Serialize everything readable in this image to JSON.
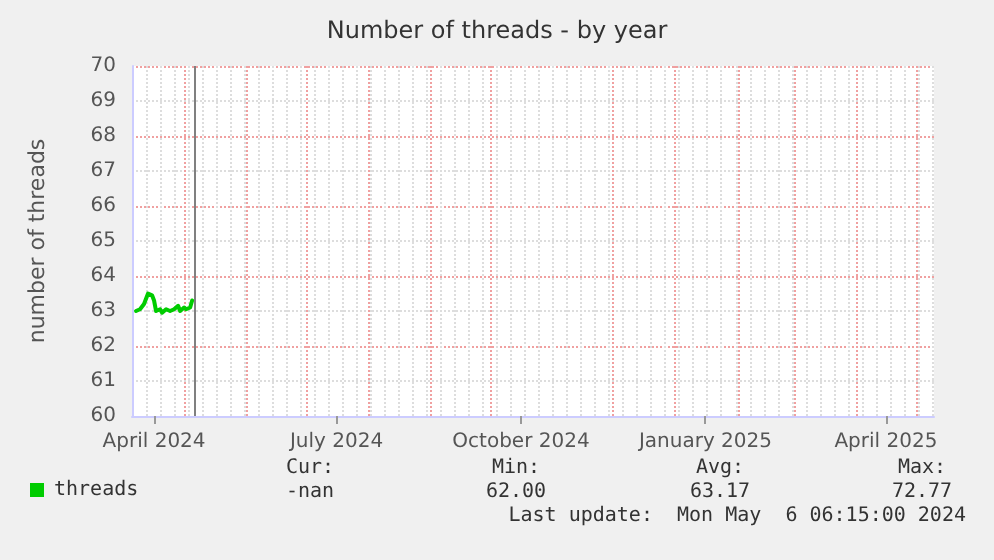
{
  "chart_data": {
    "type": "line",
    "title": "Number of threads - by year",
    "ylabel": "number of threads",
    "x": [
      "2024-04-07",
      "2024-04-09",
      "2024-04-11",
      "2024-04-13",
      "2024-04-15",
      "2024-04-16",
      "2024-04-17",
      "2024-04-19",
      "2024-04-20",
      "2024-04-22",
      "2024-04-24",
      "2024-04-26",
      "2024-04-28",
      "2024-04-29",
      "2024-04-30",
      "2024-05-01",
      "2024-05-02",
      "2024-05-04",
      "2024-05-05"
    ],
    "series": [
      {
        "name": "threads",
        "color": "#00cc00",
        "values": [
          63.0,
          63.05,
          63.2,
          63.5,
          63.45,
          63.3,
          63.0,
          63.05,
          62.95,
          63.05,
          63.0,
          63.05,
          63.15,
          63.0,
          63.05,
          63.1,
          63.05,
          63.1,
          63.3
        ]
      }
    ],
    "xlim": [
      "2024-04-05",
      "2025-05-10"
    ],
    "xticks": [
      {
        "value": "2024-04-16",
        "label": "April 2024"
      },
      {
        "value": "2024-07-16",
        "label": "July 2024"
      },
      {
        "value": "2024-10-16",
        "label": "October 2024"
      },
      {
        "value": "2025-01-16",
        "label": "January 2025"
      },
      {
        "value": "2025-04-16",
        "label": "April 2025"
      }
    ],
    "ylim": [
      60,
      70
    ],
    "yticks": [
      60,
      61,
      62,
      63,
      64,
      65,
      66,
      67,
      68,
      69,
      70
    ],
    "grid": true,
    "legend": "bottom left",
    "line_style": "solid",
    "marker": "none",
    "ref_lines": [
      {
        "axis": "x",
        "value": "2024-05-06",
        "label": null,
        "color": "#808080"
      }
    ],
    "annotations": [
      "Cur:",
      "Min:",
      "Avg:",
      "Max:",
      "-nan",
      "62.00",
      "63.17",
      "72.77",
      "Last update:  Mon May  6 06:15:00 2024"
    ]
  }
}
